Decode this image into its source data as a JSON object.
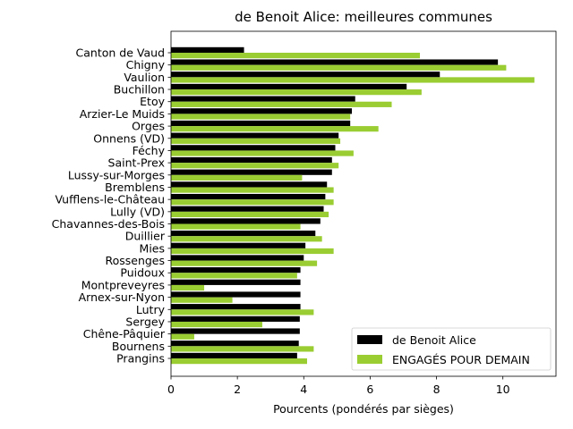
{
  "chart_data": {
    "type": "bar",
    "orientation": "horizontal",
    "title": "de Benoit Alice: meilleures communes",
    "xlabel": "Pourcents (pondérés par sièges)",
    "ylabel": "",
    "xlim": [
      0,
      11.6
    ],
    "xticks": [
      0,
      2,
      4,
      6,
      8,
      10
    ],
    "grid": false,
    "legend_position": "lower-right",
    "categories": [
      "Canton de Vaud",
      "Chigny",
      "Vaulion",
      "Buchillon",
      "Etoy",
      "Arzier-Le Muids",
      "Orges",
      "Onnens (VD)",
      "Féchy",
      "Saint-Prex",
      "Lussy-sur-Morges",
      "Bremblens",
      "Vufflens-le-Château",
      "Lully (VD)",
      "Chavannes-des-Bois",
      "Duillier",
      "Mies",
      "Rossenges",
      "Puidoux",
      "Montpreveyres",
      "Arnex-sur-Nyon",
      "Lutry",
      "Sergey",
      "Chêne-Pâquier",
      "Bournens",
      "Prangins"
    ],
    "series": [
      {
        "name": "de Benoit Alice",
        "color": "#000000",
        "values": [
          2.2,
          9.85,
          8.1,
          7.1,
          5.55,
          5.45,
          5.4,
          5.05,
          4.95,
          4.85,
          4.85,
          4.7,
          4.65,
          4.6,
          4.5,
          4.35,
          4.05,
          4.0,
          3.9,
          3.9,
          3.9,
          3.9,
          3.88,
          3.88,
          3.85,
          3.8
        ]
      },
      {
        "name": "ENGAGÉS POUR DEMAIN",
        "color": "#9acd32",
        "values": [
          7.5,
          10.1,
          10.95,
          7.55,
          6.65,
          5.4,
          6.25,
          5.1,
          5.5,
          5.05,
          3.95,
          4.9,
          4.9,
          4.75,
          3.9,
          4.55,
          4.9,
          4.4,
          3.8,
          1.0,
          1.85,
          4.3,
          2.75,
          0.7,
          4.3,
          4.1
        ]
      }
    ]
  }
}
